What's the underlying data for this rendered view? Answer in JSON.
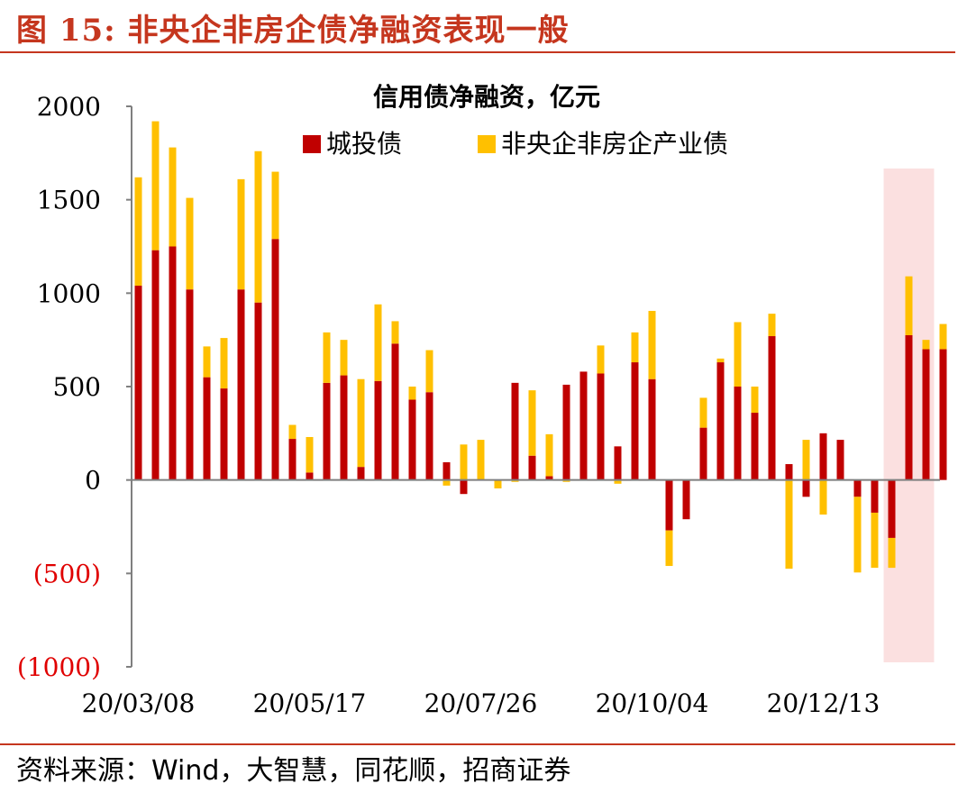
{
  "figure": {
    "title": "图  15:  非央企非房企债净融资表现一般",
    "source": "资料来源：Wind，大智慧，同花顺，招商证券"
  },
  "colors": {
    "accent": "#C5361E",
    "series1": "#C00000",
    "series2": "#FFC000",
    "highlight": "#FBE0E0",
    "negative_tick": "#E00000"
  },
  "chart_data": {
    "type": "bar",
    "stacked": true,
    "title": "信用债净融资，亿元",
    "ylim": [
      -1000,
      2000
    ],
    "yticks": [
      2000,
      1500,
      1000,
      500,
      0,
      -500,
      -1000
    ],
    "ytick_labels": [
      "2000",
      "1500",
      "1000",
      "500",
      "0",
      "(500)",
      "(1000)"
    ],
    "xtick_labels": [
      "20/03/08",
      "20/05/17",
      "20/07/26",
      "20/10/04",
      "20/12/13"
    ],
    "xtick_positions": [
      0,
      10,
      20,
      30,
      40
    ],
    "legend_position": "top",
    "highlight_range": [
      44,
      46
    ],
    "series": [
      {
        "name": "城投债",
        "values": [
          1040,
          1230,
          1250,
          1020,
          550,
          490,
          1020,
          950,
          1290,
          220,
          40,
          520,
          560,
          70,
          530,
          730,
          430,
          470,
          95,
          -75,
          0,
          0,
          520,
          130,
          20,
          510,
          580,
          570,
          180,
          630,
          540,
          -270,
          -210,
          280,
          630,
          500,
          360,
          770,
          85,
          -90,
          250,
          215,
          -90,
          -175,
          -310,
          775,
          700,
          700
        ]
      },
      {
        "name": "非央企非房企产业债",
        "values": [
          580,
          690,
          530,
          490,
          165,
          270,
          590,
          810,
          360,
          75,
          190,
          270,
          190,
          470,
          410,
          120,
          70,
          225,
          -30,
          190,
          215,
          -45,
          -10,
          350,
          225,
          -10,
          0,
          150,
          -20,
          160,
          365,
          -190,
          0,
          160,
          20,
          345,
          140,
          120,
          -475,
          215,
          -185,
          0,
          -405,
          -295,
          -160,
          315,
          50,
          135
        ]
      }
    ]
  }
}
